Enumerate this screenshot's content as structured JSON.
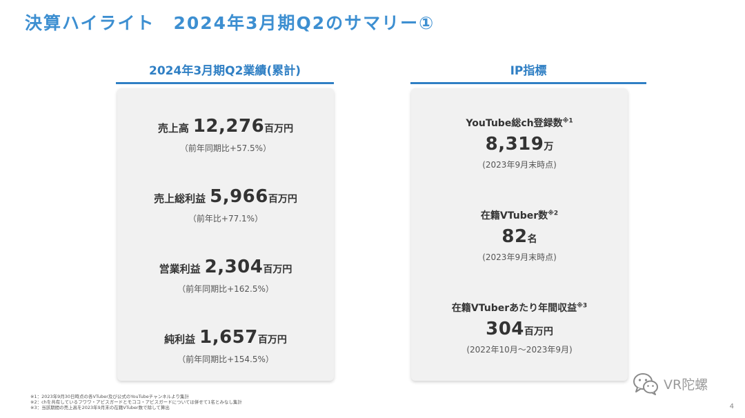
{
  "title": "決算ハイライト　2024年3月期Q2のサマリー①",
  "left": {
    "heading": "2024年3月期Q2業績(累計)",
    "metrics": [
      {
        "label": "売上高",
        "value": "12,276",
        "unit": "百万円",
        "sub": "（前年同期比+57.5%）"
      },
      {
        "label": "売上総利益",
        "value": "5,966",
        "unit": "百万円",
        "sub": "（前年比+77.1%）"
      },
      {
        "label": "営業利益",
        "value": "2,304",
        "unit": "百万円",
        "sub": "（前年同期比+162.5%）"
      },
      {
        "label": "純利益",
        "value": "1,657",
        "unit": "百万円",
        "sub": "（前年同期比+154.5%）"
      }
    ]
  },
  "right": {
    "heading": "IP指標",
    "metrics": [
      {
        "label": "YouTube総ch登録数",
        "note": "※1",
        "value": "8,319",
        "unit": "万",
        "sub": "(2023年9月末時点)"
      },
      {
        "label": "在籍VTuber数",
        "note": "※2",
        "value": "82",
        "unit": "名",
        "sub": "(2023年9月末時点)"
      },
      {
        "label": "在籍VTuberあたり年間収益",
        "note": "※3",
        "value": "304",
        "unit": "百万円",
        "sub": "(2022年10月～2023年9月)"
      }
    ]
  },
  "footnotes": [
    "※1：2023年9月30日時点の各VTuber及び公式のYouTubeチャンネルより集計",
    "※2：chを共有しているフワワ・アビスガードとモココ・アビスガードについては併せて1名とみなし集計",
    "※3：当該期間の売上高を2023年9月末の在籍VTuber数で除して算出"
  ],
  "watermark": "VR陀螺",
  "page_number": "4",
  "colors": {
    "accent": "#3d8fd1",
    "card_bg": "#f1f1f1"
  },
  "icons": {
    "watermark": "wechat-icon"
  }
}
